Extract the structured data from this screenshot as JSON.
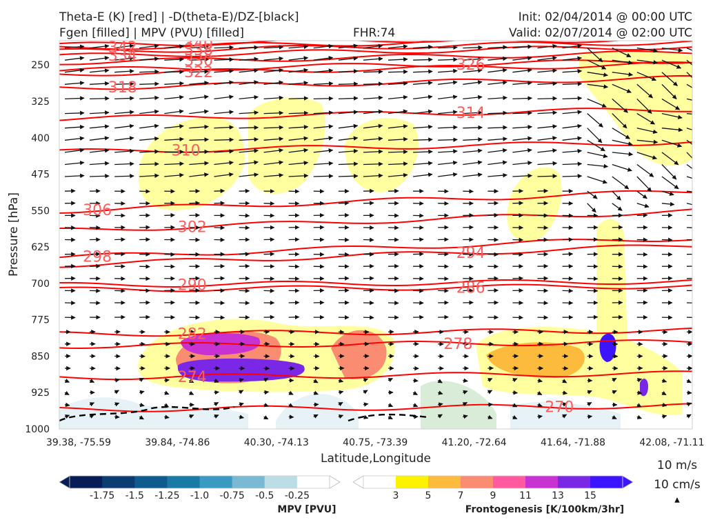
{
  "header": {
    "title_line1": "Theta-E (K) [red] | -D(theta-E)/DZ-[black]",
    "title_line2": "Fgen [filled] | MPV (PVU) [filled]",
    "fhr": "FHR:74",
    "init": "Init: 02/04/2014 @ 00:00 UTC",
    "valid": "Valid: 02/07/2014 @ 02:00 UTC"
  },
  "chart_data": {
    "type": "cross-section",
    "ylabel": "Pressure [hPa]",
    "xlabel": "Latitude,Longitude",
    "y_axis": {
      "scale": "pressure (inverted)",
      "range": [
        1000,
        200
      ],
      "ticks": [
        "250",
        "325",
        "400",
        "475",
        "550",
        "625",
        "700",
        "775",
        "850",
        "925",
        "1000"
      ]
    },
    "x_ticks": [
      "39.38, -75.59",
      "39.84, -74.86",
      "40.30, -74.13",
      "40.75, -73.39",
      "41.20, -72.64",
      "41.64, -71.88",
      "42.08, -71.11"
    ],
    "theta_e_contours": {
      "color": "#ff0000",
      "labels": [
        {
          "v": "342",
          "x": 0.1,
          "p": 213
        },
        {
          "v": "340",
          "x": 0.22,
          "p": 205
        },
        {
          "v": "338",
          "x": 0.22,
          "p": 218
        },
        {
          "v": "334",
          "x": 0.1,
          "p": 230
        },
        {
          "v": "330",
          "x": 0.22,
          "p": 240
        },
        {
          "v": "326",
          "x": 0.65,
          "p": 248
        },
        {
          "v": "322",
          "x": 0.22,
          "p": 264
        },
        {
          "v": "318",
          "x": 0.1,
          "p": 295
        },
        {
          "v": "314",
          "x": 0.65,
          "p": 348
        },
        {
          "v": "310",
          "x": 0.2,
          "p": 425
        },
        {
          "v": "306",
          "x": 0.06,
          "p": 548
        },
        {
          "v": "302",
          "x": 0.21,
          "p": 583
        },
        {
          "v": "298",
          "x": 0.06,
          "p": 644
        },
        {
          "v": "294",
          "x": 0.65,
          "p": 636
        },
        {
          "v": "290",
          "x": 0.21,
          "p": 702
        },
        {
          "v": "286",
          "x": 0.65,
          "p": 708
        },
        {
          "v": "282",
          "x": 0.21,
          "p": 803
        },
        {
          "v": "278",
          "x": 0.63,
          "p": 824
        },
        {
          "v": "274",
          "x": 0.21,
          "p": 892
        },
        {
          "v": "270",
          "x": 0.79,
          "p": 954
        }
      ]
    },
    "fgen_scale": {
      "label": "Frontogenesis [K/100km/3hr]",
      "ticks": [
        "3",
        "5",
        "7",
        "9",
        "11",
        "13",
        "15"
      ],
      "colors": [
        "#ffffff",
        "#fff200",
        "#fcbb3c",
        "#fa8c72",
        "#ff5aa0",
        "#c832d2",
        "#7a28e6",
        "#3c14ff"
      ]
    },
    "mpv_scale": {
      "label": "MPV [PVU]",
      "ticks": [
        "-1.75",
        "-1.5",
        "-1.25",
        "-1.0",
        "-0.75",
        "-0.5",
        "-0.25"
      ],
      "colors": [
        "#081d58",
        "#0b3c72",
        "#0f5a8e",
        "#1a7aa6",
        "#3a9ac2",
        "#7ab9d3",
        "#bcdde6",
        "#ffffff"
      ]
    },
    "vector_key": {
      "line1": "10 m/s",
      "line2": "10 cm/s"
    }
  }
}
